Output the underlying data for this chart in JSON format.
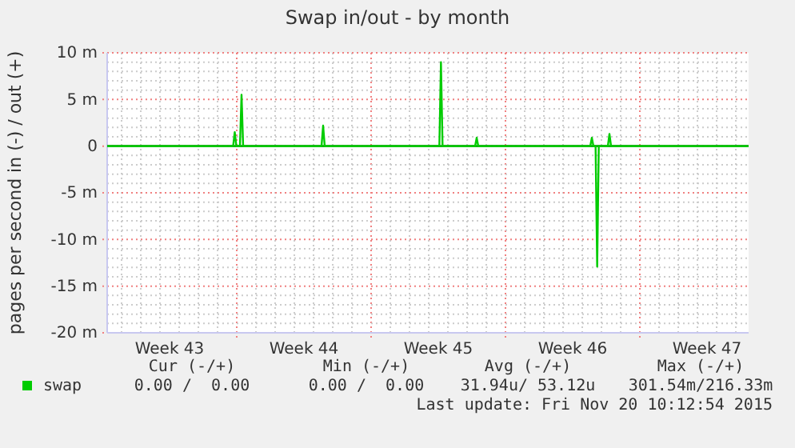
{
  "chart_data": {
    "type": "line",
    "title": "Swap in/out - by month",
    "ylabel": "pages per second in (-) / out (+)",
    "xlim": [
      "2015-10-19T06:00",
      "2015-11-21T16:00"
    ],
    "xticks": [
      {
        "value": "2015-10-22T12:00",
        "label": "Week 43"
      },
      {
        "value": "2015-10-26T00:00",
        "label": null
      },
      {
        "value": "2015-10-29T12:00",
        "label": "Week 44"
      },
      {
        "value": "2015-11-02T00:00",
        "label": null
      },
      {
        "value": "2015-11-05T12:00",
        "label": "Week 45"
      },
      {
        "value": "2015-11-09T00:00",
        "label": null
      },
      {
        "value": "2015-11-12T12:00",
        "label": "Week 46"
      },
      {
        "value": "2015-11-16T00:00",
        "label": null
      },
      {
        "value": "2015-11-19T12:00",
        "label": "Week 47"
      }
    ],
    "ylim": [
      -20,
      10
    ],
    "yticks": [
      {
        "value": -20,
        "label": "-20 m"
      },
      {
        "value": -15,
        "label": "-15 m"
      },
      {
        "value": -10,
        "label": "-10 m"
      },
      {
        "value": -5,
        "label": "-5 m"
      },
      {
        "value": 0,
        "label": "0"
      },
      {
        "value": 5,
        "label": "5 m"
      },
      {
        "value": 10,
        "label": "10 m"
      }
    ],
    "grid": true,
    "legend": "bottom",
    "marker": "none",
    "line_style": "solid",
    "ref_lines": [
      {
        "axis": "y",
        "value": 0,
        "color": "#000000"
      }
    ],
    "series": [
      {
        "name": "swap",
        "color": "#00cc00",
        "x": [
          "2015-10-19T06:00",
          "2015-10-25T19:30",
          "2015-10-25T21:30",
          "2015-10-25T23:30",
          "2015-10-26T04:00",
          "2015-10-26T06:00",
          "2015-10-26T08:00",
          "2015-10-30T10:00",
          "2015-10-30T12:00",
          "2015-10-30T14:00",
          "2015-11-05T13:20",
          "2015-11-05T15:20",
          "2015-11-05T17:20",
          "2015-11-07T10:00",
          "2015-11-07T12:00",
          "2015-11-07T14:00",
          "2015-11-13T10:00",
          "2015-11-13T12:00",
          "2015-11-13T14:00",
          "2015-11-14T08:00",
          "2015-11-14T10:00",
          "2015-11-14T12:00",
          "2015-11-21T16:00"
        ],
        "values": [
          0,
          0,
          1.5,
          0,
          0,
          5.5,
          0,
          0,
          2.2,
          0,
          0,
          9,
          0,
          0,
          0.9,
          0,
          0,
          0.9,
          0,
          0,
          1.3,
          0,
          0
        ]
      },
      {
        "color": "#00cc00",
        "x": [
          "2015-10-19T06:00",
          "2015-11-13T16:40",
          "2015-11-13T18:40",
          "2015-11-13T20:40",
          "2015-11-21T16:00"
        ],
        "values": [
          0,
          0,
          -12.9,
          0,
          0
        ]
      }
    ],
    "annotations": [
      "Cur (-/+)",
      "Min (-/+)",
      "Avg (-/+)",
      "Max (-/+)",
      "0.00 /  0.00",
      "0.00 /  0.00",
      "31.94u/ 53.12u",
      "301.54m/216.33m",
      "Last update: Fri Nov 20 10:12:54 2015"
    ]
  }
}
